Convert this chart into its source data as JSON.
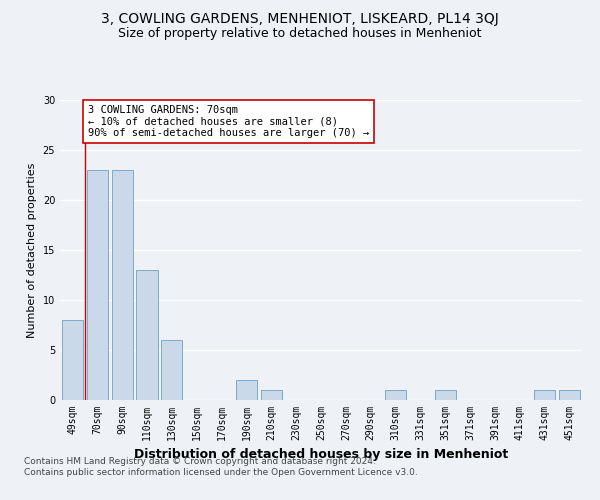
{
  "title": "3, COWLING GARDENS, MENHENIOT, LISKEARD, PL14 3QJ",
  "subtitle": "Size of property relative to detached houses in Menheniot",
  "xlabel": "Distribution of detached houses by size in Menheniot",
  "ylabel": "Number of detached properties",
  "categories": [
    "49sqm",
    "70sqm",
    "90sqm",
    "110sqm",
    "130sqm",
    "150sqm",
    "170sqm",
    "190sqm",
    "210sqm",
    "230sqm",
    "250sqm",
    "270sqm",
    "290sqm",
    "310sqm",
    "331sqm",
    "351sqm",
    "371sqm",
    "391sqm",
    "411sqm",
    "431sqm",
    "451sqm"
  ],
  "values": [
    8,
    23,
    23,
    13,
    6,
    0,
    0,
    2,
    1,
    0,
    0,
    0,
    0,
    1,
    0,
    1,
    0,
    0,
    0,
    1,
    1
  ],
  "bar_color": "#c9d9ea",
  "bar_edge_color": "#7aaac8",
  "highlight_index": 1,
  "highlight_line_color": "#cc0000",
  "ylim": [
    0,
    30
  ],
  "annotation_text": "3 COWLING GARDENS: 70sqm\n← 10% of detached houses are smaller (8)\n90% of semi-detached houses are larger (70) →",
  "annotation_box_facecolor": "#ffffff",
  "annotation_box_edgecolor": "#cc0000",
  "footer_text": "Contains HM Land Registry data © Crown copyright and database right 2024.\nContains public sector information licensed under the Open Government Licence v3.0.",
  "bg_color": "#eef2f7",
  "plot_bg_color": "#eef2f7",
  "grid_color": "#ffffff",
  "title_fontsize": 10,
  "subtitle_fontsize": 9,
  "xlabel_fontsize": 9,
  "ylabel_fontsize": 8,
  "tick_fontsize": 7,
  "annotation_fontsize": 7.5,
  "footer_fontsize": 6.5,
  "yticks": [
    0,
    5,
    10,
    15,
    20,
    25,
    30
  ]
}
